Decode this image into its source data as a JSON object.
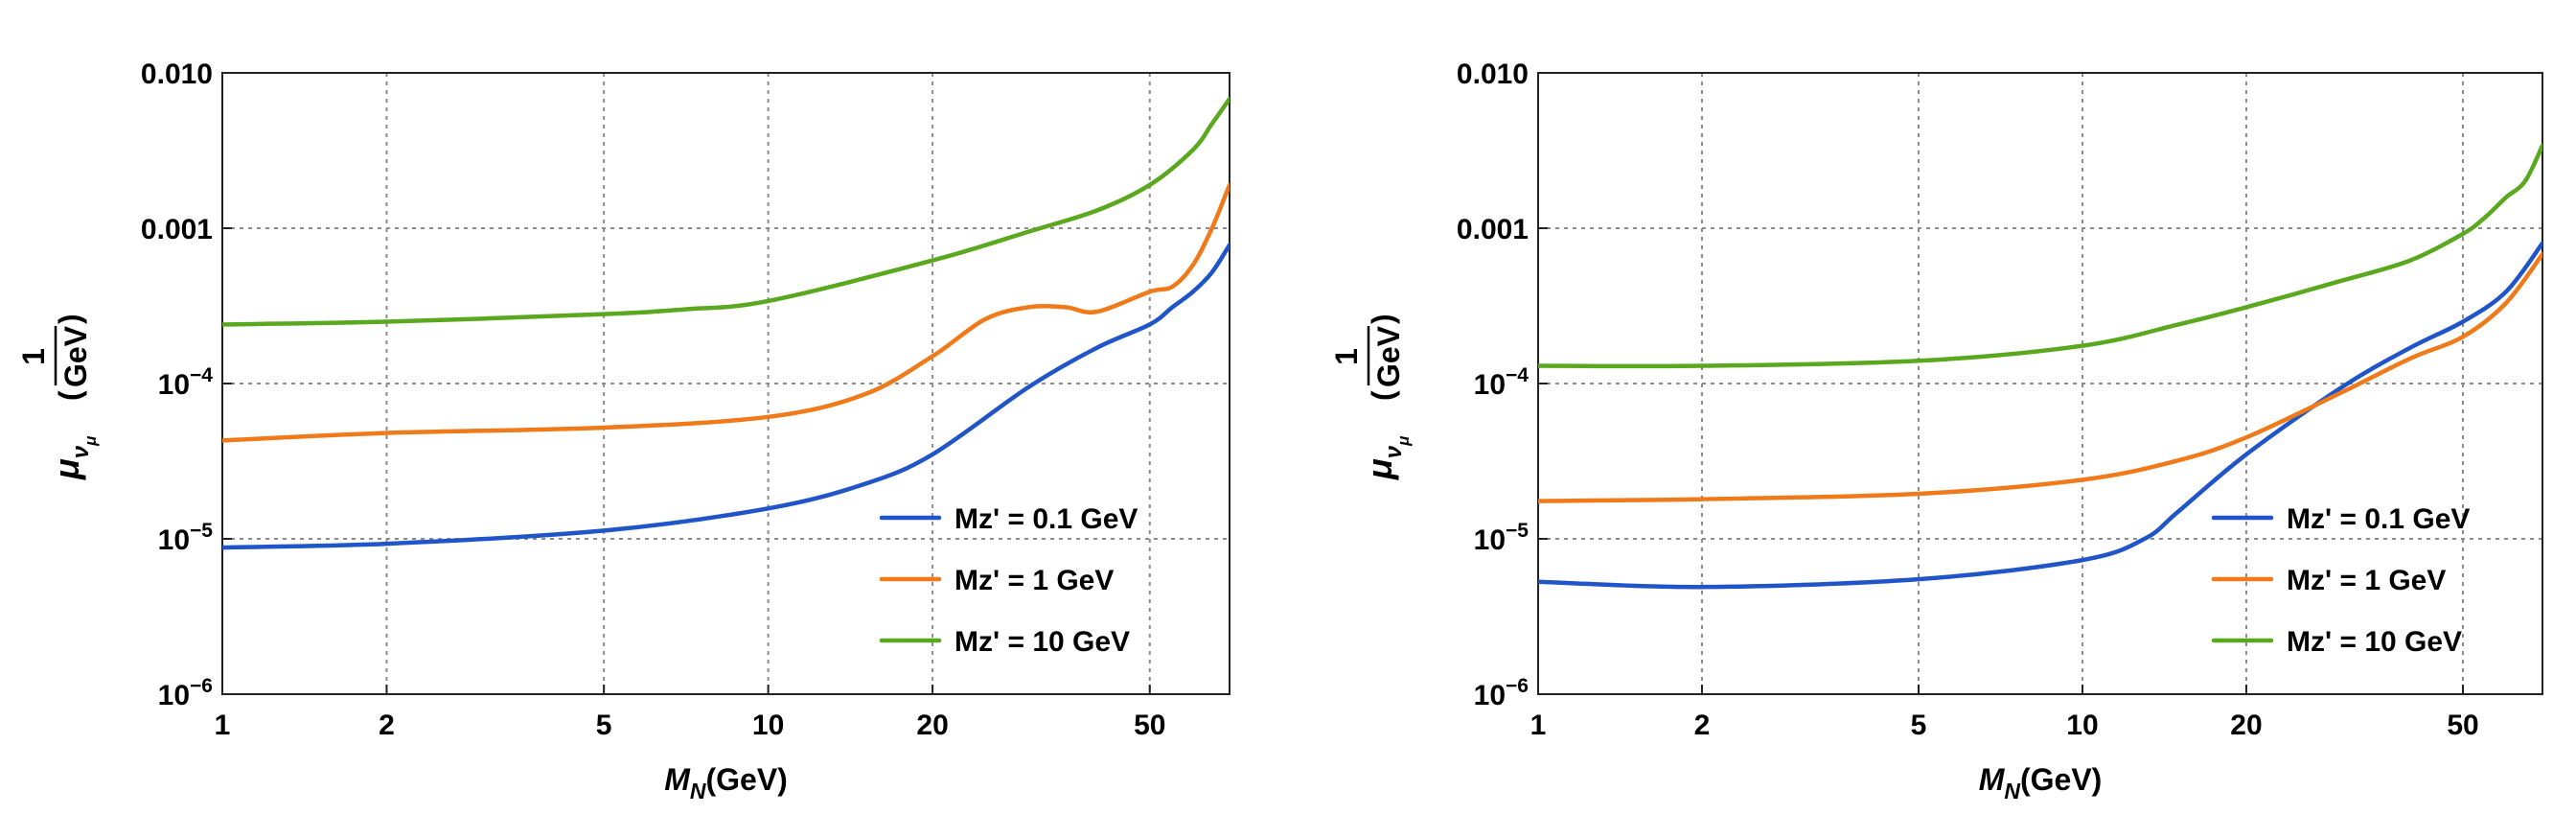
{
  "chart_data": [
    {
      "type": "line",
      "xscale": "log",
      "yscale": "log",
      "xlim": [
        1,
        70
      ],
      "ylim": [
        1e-06,
        0.01
      ],
      "x_ticks": [
        {
          "v": 1,
          "label": "1"
        },
        {
          "v": 2,
          "label": "2"
        },
        {
          "v": 5,
          "label": "5"
        },
        {
          "v": 10,
          "label": "10"
        },
        {
          "v": 20,
          "label": "20"
        },
        {
          "v": 50,
          "label": "50"
        }
      ],
      "y_ticks": [
        {
          "v": 0.01,
          "label": "0.010"
        },
        {
          "v": 0.001,
          "label": "0.001"
        },
        {
          "v": 0.0001,
          "base": "10",
          "exp": "−4"
        },
        {
          "v": 1e-05,
          "base": "10",
          "exp": "−5"
        },
        {
          "v": 1e-06,
          "base": "10",
          "exp": "−6"
        }
      ],
      "xlabel": {
        "main": "M",
        "sub": "N",
        "rest": "(GeV)"
      },
      "ylabel": {
        "mu": "μ",
        "sub_nu": "ν",
        "sub_mu": "μ",
        "num": "1",
        "den": "GeV"
      },
      "legend": {
        "position": "bottom-right"
      },
      "series": [
        {
          "name": "Mz' = 0.1 GeV",
          "color": "#1f55c8",
          "x": [
            1,
            2,
            5,
            10,
            15,
            20,
            30,
            40,
            50,
            55,
            60,
            65,
            70
          ],
          "y": [
            8.8e-06,
            9.3e-06,
            1.13e-05,
            1.57e-05,
            2.25e-05,
            3.5e-05,
            9.5e-05,
            0.00017,
            0.00024,
            0.00031,
            0.00039,
            0.00052,
            0.00078
          ]
        },
        {
          "name": "Mz' = 1 GeV",
          "color": "#f07a1a",
          "x": [
            1,
            2,
            5,
            10,
            15,
            20,
            25,
            30,
            35,
            40,
            50,
            55,
            60,
            65,
            70
          ],
          "y": [
            4.3e-05,
            4.8e-05,
            5.2e-05,
            6.1e-05,
            8.5e-05,
            0.00015,
            0.00026,
            0.00031,
            0.00031,
            0.00029,
            0.00039,
            0.00042,
            0.00058,
            0.001,
            0.0019
          ]
        },
        {
          "name": "Mz' = 10 GeV",
          "color": "#5aa81e",
          "x": [
            1,
            2,
            5,
            7,
            10,
            20,
            30,
            40,
            50,
            60,
            65,
            70
          ],
          "y": [
            0.00024,
            0.00025,
            0.00028,
            0.0003,
            0.00034,
            0.00062,
            0.00095,
            0.0013,
            0.0019,
            0.0032,
            0.0047,
            0.0068
          ]
        }
      ]
    },
    {
      "type": "line",
      "xscale": "log",
      "yscale": "log",
      "xlim": [
        1,
        70
      ],
      "ylim": [
        1e-06,
        0.01
      ],
      "x_ticks": [
        {
          "v": 1,
          "label": "1"
        },
        {
          "v": 2,
          "label": "2"
        },
        {
          "v": 5,
          "label": "5"
        },
        {
          "v": 10,
          "label": "10"
        },
        {
          "v": 20,
          "label": "20"
        },
        {
          "v": 50,
          "label": "50"
        }
      ],
      "y_ticks": [
        {
          "v": 0.01,
          "label": "0.010"
        },
        {
          "v": 0.001,
          "label": "0.001"
        },
        {
          "v": 0.0001,
          "base": "10",
          "exp": "−4"
        },
        {
          "v": 1e-05,
          "base": "10",
          "exp": "−5"
        },
        {
          "v": 1e-06,
          "base": "10",
          "exp": "−6"
        }
      ],
      "xlabel": {
        "main": "M",
        "sub": "N",
        "rest": "(GeV)"
      },
      "ylabel": {
        "mu": "μ",
        "sub_nu": "ν",
        "sub_mu": "μ",
        "num": "1",
        "den": "GeV"
      },
      "legend": {
        "position": "bottom-right"
      },
      "series": [
        {
          "name": "Mz' = 0.1 GeV",
          "color": "#1f55c8",
          "x": [
            1,
            2,
            5,
            10,
            13,
            15,
            20,
            30,
            40,
            50,
            60,
            70
          ],
          "y": [
            5.3e-06,
            4.9e-06,
            5.5e-06,
            7.3e-06,
            1e-05,
            1.5e-05,
            3.5e-05,
            9.5e-05,
            0.00017,
            0.00025,
            0.00039,
            0.0008
          ]
        },
        {
          "name": "Mz' = 1 GeV",
          "color": "#f07a1a",
          "x": [
            1,
            2,
            5,
            10,
            15,
            20,
            30,
            40,
            50,
            60,
            70
          ],
          "y": [
            1.75e-05,
            1.8e-05,
            1.95e-05,
            2.4e-05,
            3.2e-05,
            4.5e-05,
            8.8e-05,
            0.000145,
            0.0002,
            0.00033,
            0.00068
          ]
        },
        {
          "name": "Mz' = 10 GeV",
          "color": "#5aa81e",
          "x": [
            1,
            2,
            5,
            10,
            15,
            20,
            30,
            40,
            50,
            55,
            60,
            65,
            70
          ],
          "y": [
            0.00013,
            0.00013,
            0.00014,
            0.000175,
            0.00024,
            0.00031,
            0.00046,
            0.00062,
            0.00092,
            0.00118,
            0.00158,
            0.002,
            0.0034
          ]
        }
      ]
    }
  ]
}
